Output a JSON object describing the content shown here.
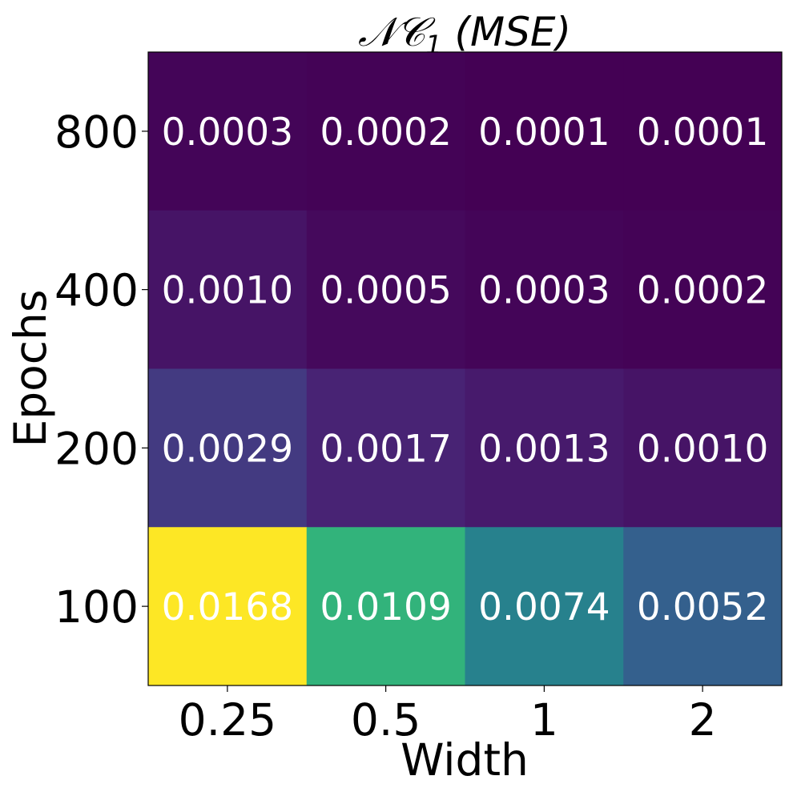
{
  "chart_data": {
    "type": "heatmap",
    "title": "NC1 (MSE)",
    "title_parts": {
      "symbol": "𝒩𝒞",
      "subscript": "1",
      "suffix": " (MSE)"
    },
    "xlabel": "Width",
    "ylabel": "Epochs",
    "x_categories": [
      "0.25",
      "0.5",
      "1",
      "2"
    ],
    "y_categories": [
      "800",
      "400",
      "200",
      "100"
    ],
    "values": [
      [
        0.0003,
        0.0002,
        0.0001,
        0.0001
      ],
      [
        0.001,
        0.0005,
        0.0003,
        0.0002
      ],
      [
        0.0029,
        0.0017,
        0.0013,
        0.001
      ],
      [
        0.0168,
        0.0109,
        0.0074,
        0.0052
      ]
    ],
    "labels": [
      [
        "0.0003",
        "0.0002",
        "0.0001",
        "0.0001"
      ],
      [
        "0.0010",
        "0.0005",
        "0.0003",
        "0.0002"
      ],
      [
        "0.0029",
        "0.0017",
        "0.0013",
        "0.0010"
      ],
      [
        "0.0168",
        "0.0109",
        "0.0074",
        "0.0052"
      ]
    ],
    "colormap": "viridis",
    "colorbar": false,
    "grid": false
  }
}
